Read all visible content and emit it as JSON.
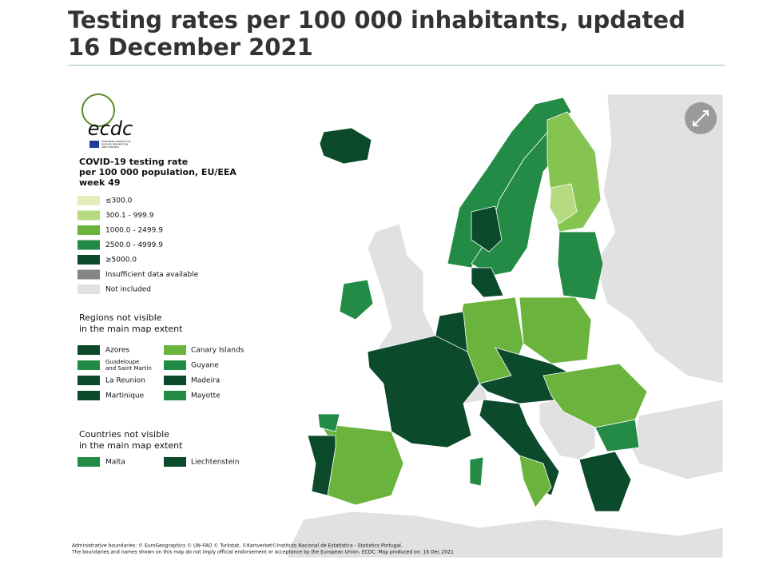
{
  "title": "Testing rates per 100 000 inhabitants, updated 16 December 2021",
  "logo": {
    "name": "ecdc",
    "subtitle": [
      "EUROPEAN CENTRE FOR",
      "DISEASE PREVENTION",
      "AND CONTROL"
    ]
  },
  "legend": {
    "title": [
      "COVID-19 testing rate",
      "per 100 000 population, EU/EEA",
      "week 49"
    ],
    "items": [
      {
        "label": "≤300.0",
        "color": "#e6ebbb"
      },
      {
        "label": "300.1 - 999.9",
        "color": "#b6da80"
      },
      {
        "label": "1000.0 - 2499.9",
        "color": "#6ab43e"
      },
      {
        "label": "2500.0 - 4999.9",
        "color": "#238b45"
      },
      {
        "label": "≥5000.0",
        "color": "#0b4a2a"
      },
      {
        "label": "Insufficient data available",
        "color": "#858585"
      },
      {
        "label": "Not included",
        "color": "#e1e1e1"
      }
    ]
  },
  "regions": {
    "title": [
      "Regions not visible",
      "in the main map extent"
    ],
    "items": [
      {
        "label": "Azores",
        "color": "#0b4a2a"
      },
      {
        "label": "Canary Islands",
        "color": "#6ab43e"
      },
      {
        "label": [
          "Guadeloupe",
          "and Saint Martin"
        ],
        "color": "#238b45"
      },
      {
        "label": "Guyane",
        "color": "#238b45"
      },
      {
        "label": "La Reunion",
        "color": "#0b4a2a"
      },
      {
        "label": "Madeira",
        "color": "#0b4a2a"
      },
      {
        "label": "Martinique",
        "color": "#0b4a2a"
      },
      {
        "label": "Mayotte",
        "color": "#238b45"
      }
    ]
  },
  "countries": {
    "title": [
      "Countries not visible",
      "in the main map extent"
    ],
    "items": [
      {
        "label": "Malta",
        "color": "#238b45"
      },
      {
        "label": "Liechtenstein",
        "color": "#0b4a2a"
      }
    ]
  },
  "footer": [
    "Administrative boundaries: © EuroGeographics © UN–FAO © Turkstat. ©Kartverket©Instituto Nacional de Estatística - Statistics Portugal.",
    "The boundaries and names shown on this map do not imply official endorsement or acceptance by the European Union. ECDC. Map produced on: 16 Dec 2021"
  ]
}
